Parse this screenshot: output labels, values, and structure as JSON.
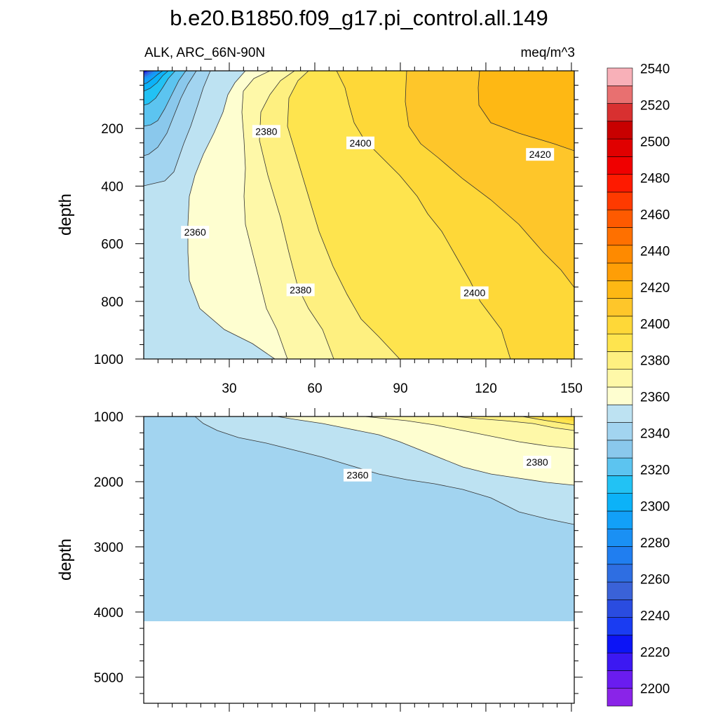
{
  "chart_data": {
    "type": "heatmap",
    "title": "b.e20.B1850.f09_g17.pi_control.all.149",
    "left_subtitle": "ALK, ARC_66N-90N",
    "right_subtitle": "meq/m^3",
    "ylabel": "depth",
    "x_ticks": [
      "30",
      "60",
      "90",
      "120",
      "150"
    ],
    "x_tick_values": [
      30,
      60,
      90,
      120,
      150
    ],
    "xlim": [
      0,
      151
    ],
    "panels": [
      {
        "name": "upper",
        "ylim": [
          1000,
          0
        ],
        "y_ticks": [
          "200",
          "400",
          "600",
          "800",
          "1000"
        ],
        "y_tick_values": [
          200,
          400,
          600,
          800,
          1000
        ],
        "contour_labels": [
          {
            "text": "2380",
            "x": 43,
            "y": 210
          },
          {
            "text": "2400",
            "x": 76,
            "y": 250
          },
          {
            "text": "2420",
            "x": 139,
            "y": 290
          },
          {
            "text": "2360",
            "x": 18,
            "y": 560
          },
          {
            "text": "2380",
            "x": 55,
            "y": 760
          },
          {
            "text": "2400",
            "x": 116,
            "y": 770
          }
        ]
      },
      {
        "name": "lower",
        "ylim": [
          5400,
          1000
        ],
        "y_ticks": [
          "1000",
          "2000",
          "3000",
          "4000",
          "5000"
        ],
        "y_tick_values": [
          1000,
          2000,
          3000,
          4000,
          5000
        ],
        "contour_labels": [
          {
            "text": "2360",
            "x": 75,
            "y": 1900
          },
          {
            "text": "2380",
            "x": 138,
            "y": 1700
          }
        ]
      }
    ],
    "colorbar": {
      "levels": [
        2200,
        2210,
        2220,
        2230,
        2240,
        2250,
        2260,
        2270,
        2280,
        2290,
        2300,
        2310,
        2320,
        2330,
        2340,
        2350,
        2360,
        2370,
        2380,
        2390,
        2400,
        2410,
        2420,
        2430,
        2440,
        2450,
        2460,
        2470,
        2480,
        2490,
        2500,
        2510,
        2520,
        2530,
        2540,
        2550
      ],
      "labels": [
        "2200",
        "2220",
        "2240",
        "2260",
        "2280",
        "2300",
        "2320",
        "2340",
        "2360",
        "2380",
        "2400",
        "2420",
        "2440",
        "2460",
        "2480",
        "2500",
        "2520",
        "2540"
      ],
      "label_values": [
        2200,
        2220,
        2240,
        2260,
        2280,
        2300,
        2320,
        2340,
        2360,
        2380,
        2400,
        2420,
        2440,
        2460,
        2480,
        2500,
        2520,
        2540
      ],
      "colors": [
        "#8a24e8",
        "#6a1cf0",
        "#3c18f2",
        "#0c14f6",
        "#1a3cf2",
        "#2a4ce0",
        "#3a62d8",
        "#2e6ee2",
        "#207ef0",
        "#1a90f4",
        "#12a0f8",
        "#0cb2f8",
        "#22c2f4",
        "#5cc4f0",
        "#8ac8ec",
        "#a2d4f0",
        "#bde2f2",
        "#fefed0",
        "#fef8a8",
        "#fef080",
        "#fee44e",
        "#fed838",
        "#fec62a",
        "#feb814",
        "#fe9e06",
        "#fe8a00",
        "#fe7000",
        "#fe5a00",
        "#fe3a00",
        "#fe1a00",
        "#f00000",
        "#e00000",
        "#c80000",
        "#d83030",
        "#e87070",
        "#f8b0b8"
      ]
    }
  }
}
